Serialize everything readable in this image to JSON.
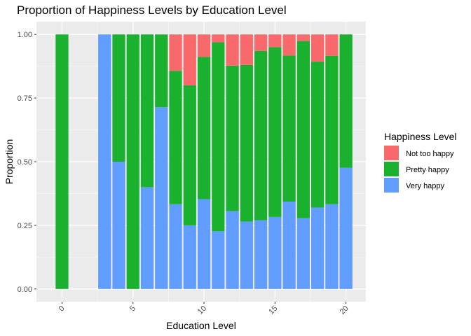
{
  "chart_data": {
    "type": "bar",
    "stacked": true,
    "title": "Proportion of Happiness Levels by Education Level",
    "xlabel": "Education Level",
    "ylabel": "Proportion",
    "xlim": [
      -1.8,
      21.4
    ],
    "ylim": [
      -0.05,
      1.05
    ],
    "x_ticks": [
      0,
      5,
      10,
      15,
      20
    ],
    "x_tick_labels": [
      "0",
      "5",
      "10",
      "15",
      "20"
    ],
    "y_ticks": [
      0,
      0.25,
      0.5,
      0.75,
      1.0
    ],
    "y_tick_labels": [
      "0.00",
      "0.25",
      "0.50",
      "0.75",
      "1.00"
    ],
    "grid": true,
    "legend": {
      "title": "Happiness Level",
      "placement": "right"
    },
    "x": [
      0,
      3,
      4,
      5,
      6,
      7,
      8,
      9,
      10,
      11,
      12,
      13,
      14,
      15,
      16,
      17,
      18,
      19,
      20
    ],
    "series": [
      {
        "name": "Very happy",
        "color": "#619CFF",
        "values": [
          0,
          1.0,
          0.5,
          0,
          0.4,
          0.714,
          0.333,
          0.25,
          0.353,
          0.227,
          0.306,
          0.265,
          0.27,
          0.283,
          0.343,
          0.278,
          0.32,
          0.333,
          0.476
        ]
      },
      {
        "name": "Pretty happy",
        "color": "#1AB12F",
        "values": [
          1.0,
          0,
          0.5,
          1.0,
          0.6,
          0.286,
          0.524,
          0.55,
          0.559,
          0.742,
          0.571,
          0.615,
          0.665,
          0.667,
          0.574,
          0.696,
          0.573,
          0.583,
          0.524
        ]
      },
      {
        "name": "Not too happy",
        "color": "#F8696B",
        "values": [
          0,
          0,
          0,
          0,
          0,
          0,
          0.143,
          0.2,
          0.088,
          0.031,
          0.123,
          0.12,
          0.065,
          0.05,
          0.083,
          0.026,
          0.107,
          0.084,
          0
        ]
      }
    ],
    "legend_order": [
      "Not too happy",
      "Pretty happy",
      "Very happy"
    ]
  }
}
